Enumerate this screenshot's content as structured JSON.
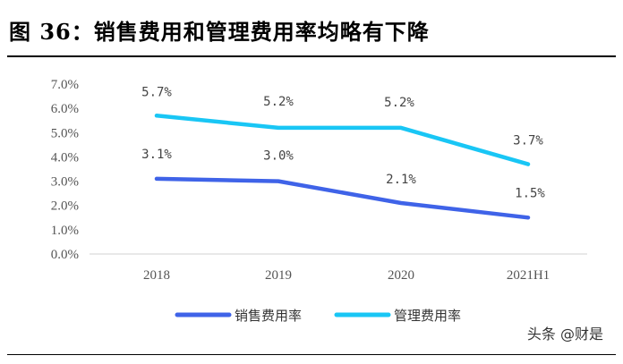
{
  "header": {
    "title": "图 36：销售费用和管理费用率均略有下降"
  },
  "watermark": "头条 @财是",
  "colors": {
    "sales": "#3f63e8",
    "admin": "#19c6f5"
  },
  "chart_data": {
    "type": "line",
    "title": "",
    "xlabel": "",
    "ylabel": "",
    "categories": [
      "2018",
      "2019",
      "2020",
      "2021H1"
    ],
    "ylim": [
      0,
      7
    ],
    "yticks": [
      "0.0%",
      "1.0%",
      "2.0%",
      "3.0%",
      "4.0%",
      "5.0%",
      "6.0%",
      "7.0%"
    ],
    "grid": false,
    "legend_position": "bottom",
    "series": [
      {
        "name": "销售费用率",
        "values": [
          3.1,
          3.0,
          2.1,
          1.5
        ],
        "labels": [
          "3.1%",
          "3.0%",
          "2.1%",
          "1.5%"
        ],
        "color": "#3f63e8"
      },
      {
        "name": "管理费用率",
        "values": [
          5.7,
          5.2,
          5.2,
          3.7
        ],
        "labels": [
          "5.7%",
          "5.2%",
          "5.2%",
          "3.7%"
        ],
        "color": "#19c6f5"
      }
    ]
  }
}
